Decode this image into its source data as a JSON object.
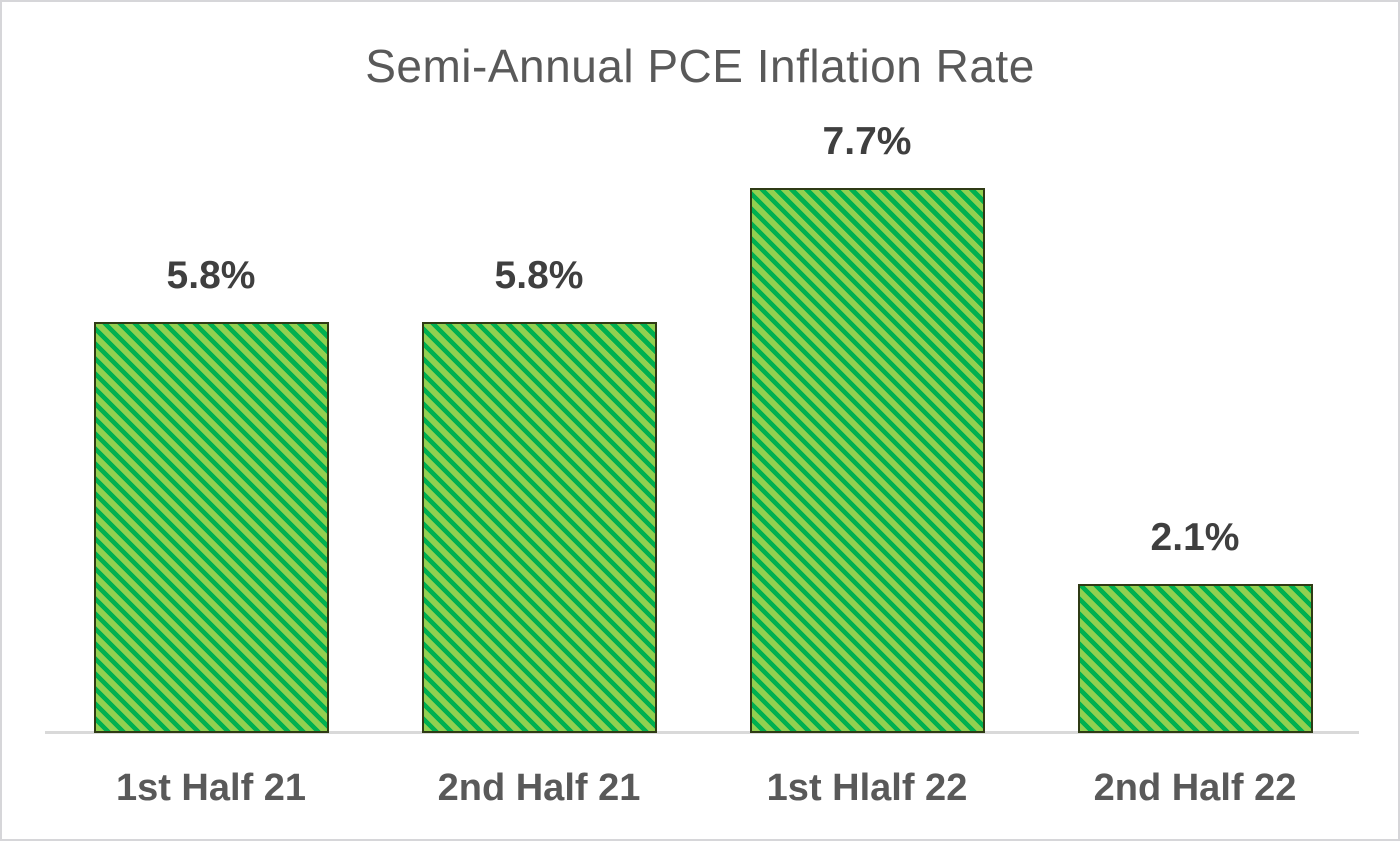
{
  "chart_data": {
    "type": "bar",
    "title": "Semi-Annual PCE Inflation Rate",
    "categories": [
      "1st Half 21",
      "2nd Half 21",
      "1st Hlalf 22",
      "2nd Half 22"
    ],
    "values": [
      5.8,
      5.8,
      7.7,
      2.1
    ],
    "value_labels": [
      "5.8%",
      "5.8%",
      "7.7%",
      "2.1%"
    ],
    "unit": "percent",
    "xlabel": "",
    "ylabel": "",
    "ylim": [
      0,
      8.8
    ],
    "y_axis_visible": false,
    "gridlines": false,
    "legend": "none",
    "bar_pattern": "light-downward-diagonal-stripes",
    "colors": {
      "bar_fill_light": "#92D050",
      "bar_stripe_dark": "#00B050",
      "bar_border": "#2F3B15",
      "axis_line": "#D9D9D9",
      "title_text": "#595959",
      "data_label_text": "#3F3F3F",
      "category_label_text": "#595959",
      "canvas_border": "#D6D6D9",
      "background": "#FFFFFF"
    }
  }
}
